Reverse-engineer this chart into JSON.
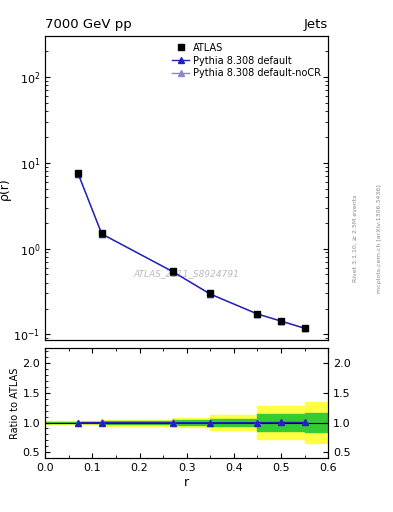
{
  "title_left": "7000 GeV pp",
  "title_right": "Jets",
  "right_label_top": "Rivet 3.1.10, ≥ 2.5M events",
  "right_label_bot": "mcplots.cern.ch [arXiv:1306.3436]",
  "watermark": "ATLAS_2011_S8924791",
  "xlabel": "r",
  "ylabel_main": "ρ(r)",
  "ylabel_ratio": "Ratio to ATLAS",
  "data_x": [
    0.07,
    0.12,
    0.27,
    0.35,
    0.45,
    0.5,
    0.55
  ],
  "data_y_atlas": [
    7.5,
    1.5,
    0.55,
    0.3,
    0.175,
    0.145,
    0.12
  ],
  "data_y_pythia_default": [
    7.4,
    1.48,
    0.54,
    0.295,
    0.173,
    0.143,
    0.118
  ],
  "data_y_pythia_nocr": [
    7.4,
    1.48,
    0.54,
    0.295,
    0.173,
    0.143,
    0.118
  ],
  "ratio_x": [
    0.07,
    0.12,
    0.27,
    0.35,
    0.45,
    0.5,
    0.55
  ],
  "ratio_y_default": [
    0.998,
    0.999,
    0.998,
    0.997,
    0.999,
    1.002,
    1.001
  ],
  "ratio_y_nocr": [
    1.0,
    1.001,
    1.001,
    1.0,
    1.002,
    1.005,
    1.004
  ],
  "band_edges": [
    0.0,
    0.07,
    0.12,
    0.27,
    0.35,
    0.45,
    0.55,
    0.6
  ],
  "yellow_lo": [
    0.97,
    0.97,
    0.95,
    0.92,
    0.88,
    0.72,
    0.65,
    0.65
  ],
  "yellow_hi": [
    1.03,
    1.03,
    1.05,
    1.08,
    1.12,
    1.28,
    1.35,
    1.35
  ],
  "green_lo": [
    0.99,
    0.99,
    0.98,
    0.96,
    0.94,
    0.86,
    0.84,
    0.84
  ],
  "green_hi": [
    1.01,
    1.01,
    1.02,
    1.04,
    1.06,
    1.14,
    1.16,
    1.16
  ],
  "color_atlas": "#000000",
  "color_pythia_default": "#2222bb",
  "color_pythia_nocr": "#8888cc",
  "color_green": "#33cc33",
  "color_yellow": "#ffff44",
  "xlim": [
    0.0,
    0.6
  ],
  "ylim_main": [
    0.085,
    300
  ],
  "ylim_ratio": [
    0.4,
    2.25
  ],
  "ratio_yticks": [
    0.5,
    1.0,
    1.5,
    2.0
  ]
}
